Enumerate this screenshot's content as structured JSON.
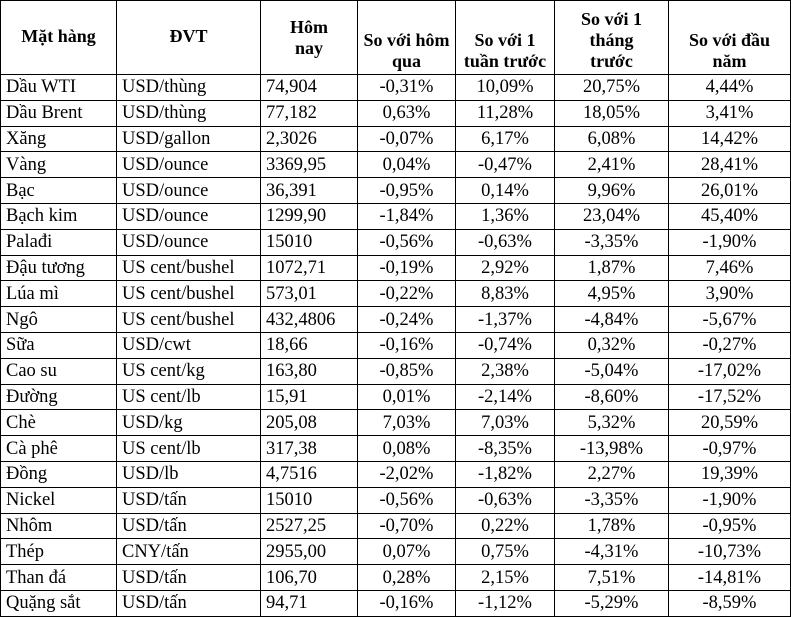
{
  "headers": [
    "Mặt hàng",
    "ĐVT",
    "Hôm nay",
    "So với hôm qua",
    "So với 1 tuần trước",
    "So với 1 tháng trước",
    "So với đầu năm"
  ],
  "rows": [
    [
      "Dầu WTI",
      "USD/thùng",
      "74,904",
      "-0,31%",
      "10,09%",
      "20,75%",
      "4,44%"
    ],
    [
      "Dầu Brent",
      "USD/thùng",
      "77,182",
      "0,63%",
      "11,28%",
      "18,05%",
      "3,41%"
    ],
    [
      "Xăng",
      "USD/gallon",
      "2,3026",
      "-0,07%",
      "6,17%",
      "6,08%",
      "14,42%"
    ],
    [
      "Vàng",
      "USD/ounce",
      "3369,95",
      "0,04%",
      "-0,47%",
      "2,41%",
      "28,41%"
    ],
    [
      "Bạc",
      "USD/ounce",
      "36,391",
      "-0,95%",
      "0,14%",
      "9,96%",
      "26,01%"
    ],
    [
      "Bạch kim",
      "USD/ounce",
      "1299,90",
      "-1,84%",
      "1,36%",
      "23,04%",
      "45,40%"
    ],
    [
      "Palađi",
      "USD/ounce",
      "15010",
      "-0,56%",
      "-0,63%",
      "-3,35%",
      "-1,90%"
    ],
    [
      "Đậu tương",
      "US cent/bushel",
      "1072,71",
      "-0,19%",
      "2,92%",
      "1,87%",
      "7,46%"
    ],
    [
      "Lúa mì",
      "US cent/bushel",
      "573,01",
      "-0,22%",
      "8,83%",
      "4,95%",
      "3,90%"
    ],
    [
      "Ngô",
      "US cent/bushel",
      "432,4806",
      "-0,24%",
      "-1,37%",
      "-4,84%",
      "-5,67%"
    ],
    [
      "Sữa",
      "USD/cwt",
      "18,66",
      "-0,16%",
      "-0,74%",
      "0,32%",
      "-0,27%"
    ],
    [
      "Cao su",
      "US cent/kg",
      "163,80",
      "-0,85%",
      "2,38%",
      "-5,04%",
      "-17,02%"
    ],
    [
      "Đường",
      "US cent/lb",
      "15,91",
      "0,01%",
      "-2,14%",
      "-8,60%",
      "-17,52%"
    ],
    [
      "Chè",
      "USD/kg",
      "205,08",
      "7,03%",
      "7,03%",
      "5,32%",
      "20,59%"
    ],
    [
      "Cà phê",
      "US cent/lb",
      "317,38",
      "0,08%",
      "-8,35%",
      "-13,98%",
      "-0,97%"
    ],
    [
      "Đồng",
      "USD/lb",
      "4,7516",
      "-2,02%",
      "-1,82%",
      "2,27%",
      "19,39%"
    ],
    [
      "Nickel",
      "USD/tấn",
      "15010",
      "-0,56%",
      "-0,63%",
      "-3,35%",
      "-1,90%"
    ],
    [
      "Nhôm",
      "USD/tấn",
      "2527,25",
      "-0,70%",
      "0,22%",
      "1,78%",
      "-0,95%"
    ],
    [
      "Thép",
      "CNY/tấn",
      "2955,00",
      "0,07%",
      "0,75%",
      "-4,31%",
      "-10,73%"
    ],
    [
      "Than đá",
      "USD/tấn",
      "106,70",
      "0,28%",
      "2,15%",
      "7,51%",
      "-14,81%"
    ],
    [
      "Quặng sắt",
      "USD/tấn",
      "94,71",
      "-0,16%",
      "-1,12%",
      "-5,29%",
      "-8,59%"
    ]
  ]
}
